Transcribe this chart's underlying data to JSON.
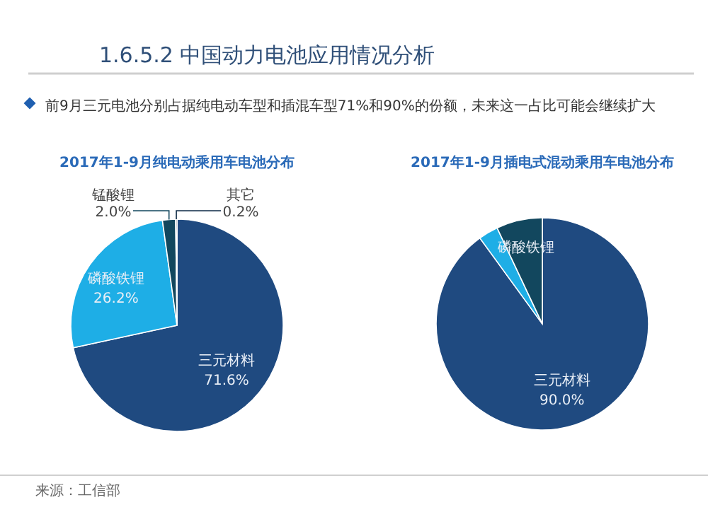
{
  "chart_data": [
    {
      "type": "other",
      "title": "1.6.5.2 中国动力电池应用情况分析",
      "subtitle": "前9月三元电池分别占据纯电动车型和插混车型71%和90%的份额，未来这一占比可能会继续扩大",
      "annotations": [
        "来源：工信部"
      ]
    },
    {
      "type": "pie",
      "title": "2017年1-9月纯电动乘用车电池分布",
      "categories": [
        "三元材料",
        "磷酸铁锂",
        "锰酸锂",
        "其它"
      ],
      "values": [
        71.6,
        26.2,
        2.0,
        0.2
      ],
      "value_labels": [
        "71.6%",
        "26.2%",
        "2.0%",
        "0.2%"
      ],
      "colors": [
        "#1f4a80",
        "#1eaee6",
        "#12475e",
        "#0d2a45"
      ]
    },
    {
      "type": "pie",
      "title": "2017年1-9月插电式混动乘用车电池分布",
      "categories": [
        "三元材料",
        null,
        "磷酸铁锂"
      ],
      "values": [
        90.0,
        3.0,
        7.0
      ],
      "value_labels": [
        "90.0%",
        null,
        null
      ],
      "colors": [
        "#1f4a80",
        "#1eaee6",
        "#12475e"
      ]
    }
  ]
}
